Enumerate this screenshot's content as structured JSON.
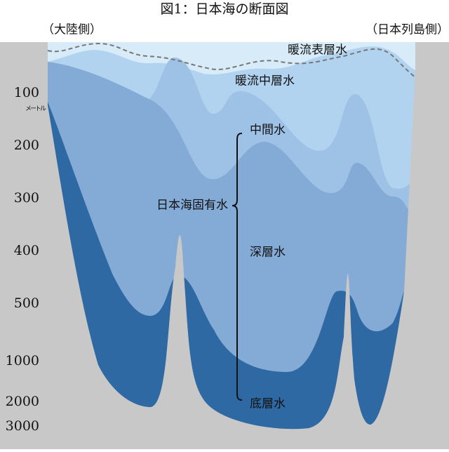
{
  "title": "図1：日本海の断面図",
  "left_label": "（大陸側）",
  "right_label": "（日本列島側）",
  "depth_axis": {
    "labels": [
      "100",
      "200",
      "300",
      "400",
      "500",
      "1000",
      "2000",
      "3000"
    ],
    "unit": "メートル"
  },
  "layers": [
    "暖流表層水",
    "暖流中層水",
    "中間水",
    "深層水",
    "底層水"
  ],
  "bracket_label": "日本海固有水"
}
